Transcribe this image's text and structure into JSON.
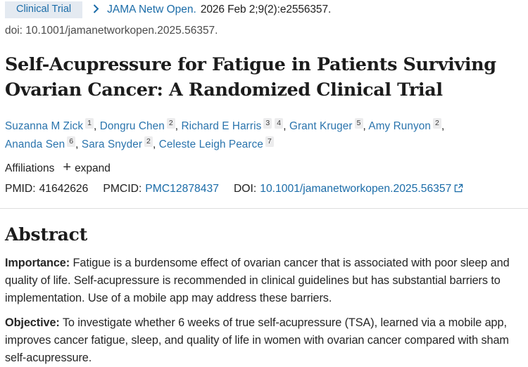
{
  "header": {
    "badge": "Clinical Trial",
    "journal": "JAMA Netw Open.",
    "citation": "2026 Feb 2;9(2):e2556357.",
    "doi_line": "doi: 10.1001/jamanetworkopen.2025.56357."
  },
  "title": "Self-Acupressure for Fatigue in Patients Surviving Ovarian Cancer: A Randomized Clinical Trial",
  "authors": [
    {
      "name": "Suzanna M Zick",
      "sups": [
        "1"
      ]
    },
    {
      "name": "Dongru Chen",
      "sups": [
        "2"
      ]
    },
    {
      "name": "Richard E Harris",
      "sups": [
        "3",
        "4"
      ]
    },
    {
      "name": "Grant Kruger",
      "sups": [
        "5"
      ]
    },
    {
      "name": "Amy Runyon",
      "sups": [
        "2"
      ]
    },
    {
      "name": "Ananda Sen",
      "sups": [
        "6"
      ]
    },
    {
      "name": "Sara Snyder",
      "sups": [
        "2"
      ]
    },
    {
      "name": "Celeste Leigh Pearce",
      "sups": [
        "7"
      ]
    }
  ],
  "affiliations": {
    "label": "Affiliations",
    "expand_label": "expand"
  },
  "ids": {
    "pmid_label": "PMID:",
    "pmid_value": "41642626",
    "pmcid_label": "PMCID:",
    "pmcid_value": "PMC12878437",
    "doi_label": "DOI:",
    "doi_value": "10.1001/jamanetworkopen.2025.56357"
  },
  "abstract": {
    "heading": "Abstract",
    "sections": [
      {
        "label": "Importance:",
        "text": "Fatigue is a burdensome effect of ovarian cancer that is associated with poor sleep and quality of life. Self-acupressure is recommended in clinical guidelines but has substantial barriers to implementation. Use of a mobile app may address these barriers."
      },
      {
        "label": "Objective:",
        "text": "To investigate whether 6 weeks of true self-acupressure (TSA), learned via a mobile app, improves cancer fatigue, sleep, and quality of life in women with ovarian cancer compared with sham self-acupressure."
      }
    ]
  },
  "colors": {
    "link_blue": "#1b6ca8",
    "badge_bg": "#e4eaf1",
    "divider": "#dedede",
    "sup_bg": "#ececed"
  }
}
